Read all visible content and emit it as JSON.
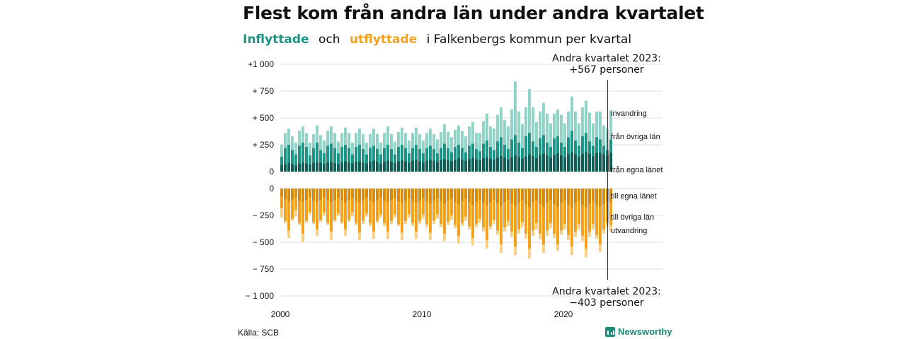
{
  "title": "Flest kom från andra län under andra kvartalet",
  "subtitle": {
    "inflyttade": "Inflyttade",
    "och": "och",
    "utflyttade": "utflyttade",
    "rest": "i Falkenbergs  kommun  per  kvartal"
  },
  "source": "Källa: SCB",
  "brand": "Newsworthy",
  "colors": {
    "in_total": "#8fd4c7",
    "in_other": "#1a9485",
    "in_own": "#0f5e55",
    "out_own": "#d98a0c",
    "out_other": "#f5a01a",
    "out_total": "#f9cf85",
    "gridline": "#dddddd"
  },
  "chart_data": {
    "type": "bar",
    "x_ticks": [
      "2000",
      "2010",
      "2020"
    ],
    "upper": {
      "y_ticks": [
        "+1 000",
        "+  750",
        "+  500",
        "+  250",
        "0"
      ],
      "ylim": [
        0,
        1000
      ],
      "annotation": [
        "Andra kvartalet 2023:",
        "+567 personer"
      ],
      "series_labels": [
        "invandring",
        "från övriga län",
        "från egna länet"
      ]
    },
    "lower": {
      "y_ticks": [
        "0",
        "−  250",
        "−  500",
        "−  750",
        "− 1 000"
      ],
      "ylim": [
        -1000,
        0
      ],
      "annotation": [
        "Andra kvartalet 2023:",
        "−403 personer"
      ],
      "series_labels": [
        "till egna länet",
        "till övriga län",
        "utvandring"
      ]
    },
    "x_start": 2000,
    "quarters_per_year": 4,
    "inflow_own": [
      60,
      70,
      80,
      70,
      60,
      75,
      85,
      75,
      65,
      80,
      90,
      80,
      70,
      85,
      90,
      80,
      70,
      85,
      95,
      85,
      75,
      90,
      95,
      85,
      75,
      90,
      100,
      90,
      75,
      90,
      100,
      90,
      80,
      95,
      105,
      95,
      80,
      100,
      110,
      95,
      85,
      100,
      110,
      100,
      90,
      105,
      115,
      105,
      95,
      110,
      125,
      110,
      100,
      115,
      130,
      115,
      105,
      125,
      135,
      120,
      110,
      130,
      145,
      130,
      115,
      135,
      150,
      135,
      120,
      140,
      160,
      145,
      125,
      150,
      165,
      150,
      130,
      155,
      170,
      150,
      135,
      160,
      180,
      160,
      140,
      165,
      185,
      165,
      145,
      170,
      175,
      160,
      150,
      175
    ],
    "inflow_other": [
      140,
      220,
      250,
      200,
      160,
      240,
      270,
      230,
      150,
      220,
      270,
      200,
      170,
      240,
      260,
      220,
      170,
      230,
      250,
      220,
      160,
      230,
      250,
      210,
      160,
      220,
      240,
      210,
      160,
      220,
      250,
      210,
      160,
      230,
      250,
      220,
      170,
      220,
      250,
      210,
      170,
      220,
      240,
      210,
      170,
      220,
      260,
      220,
      180,
      230,
      250,
      220,
      180,
      240,
      260,
      210,
      190,
      260,
      290,
      230,
      200,
      280,
      320,
      250,
      210,
      300,
      340,
      270,
      220,
      330,
      360,
      280,
      230,
      310,
      340,
      270,
      230,
      310,
      330,
      270,
      230,
      320,
      380,
      290,
      240,
      330,
      360,
      280,
      240,
      320,
      300,
      240,
      200,
      300
    ],
    "inflow_total": [
      250,
      360,
      400,
      330,
      270,
      380,
      420,
      360,
      270,
      350,
      430,
      340,
      290,
      380,
      420,
      360,
      280,
      360,
      410,
      360,
      270,
      360,
      400,
      350,
      270,
      350,
      400,
      350,
      270,
      360,
      420,
      350,
      280,
      370,
      410,
      360,
      290,
      360,
      410,
      350,
      290,
      360,
      400,
      350,
      300,
      370,
      440,
      370,
      320,
      390,
      430,
      380,
      330,
      420,
      460,
      360,
      360,
      470,
      540,
      420,
      400,
      530,
      600,
      480,
      420,
      580,
      840,
      560,
      440,
      600,
      770,
      600,
      460,
      560,
      640,
      540,
      450,
      540,
      580,
      530,
      450,
      560,
      700,
      560,
      450,
      600,
      660,
      550,
      450,
      560,
      560,
      430,
      400,
      567
    ],
    "outflow_own": [
      -70,
      -100,
      -120,
      -100,
      -80,
      -110,
      -125,
      -105,
      -80,
      -110,
      -125,
      -105,
      -80,
      -110,
      -125,
      -105,
      -85,
      -115,
      -130,
      -110,
      -85,
      -115,
      -130,
      -110,
      -85,
      -115,
      -130,
      -110,
      -85,
      -115,
      -130,
      -110,
      -90,
      -120,
      -135,
      -115,
      -90,
      -120,
      -135,
      -115,
      -90,
      -120,
      -135,
      -115,
      -90,
      -120,
      -140,
      -115,
      -95,
      -125,
      -145,
      -120,
      -95,
      -125,
      -150,
      -120,
      -100,
      -130,
      -155,
      -125,
      -100,
      -135,
      -160,
      -125,
      -105,
      -140,
      -165,
      -130,
      -110,
      -145,
      -170,
      -130,
      -110,
      -145,
      -170,
      -135,
      -110,
      -145,
      -170,
      -135,
      -115,
      -150,
      -175,
      -135,
      -115,
      -150,
      -175,
      -140,
      -115,
      -150,
      -170,
      -140,
      -120,
      -130
    ],
    "outflow_other": [
      -180,
      -300,
      -390,
      -280,
      -200,
      -320,
      -420,
      -300,
      -220,
      -310,
      -380,
      -290,
      -220,
      -320,
      -400,
      -290,
      -230,
      -310,
      -380,
      -290,
      -220,
      -320,
      -410,
      -300,
      -230,
      -320,
      -400,
      -300,
      -240,
      -320,
      -400,
      -300,
      -240,
      -330,
      -410,
      -300,
      -240,
      -320,
      -400,
      -300,
      -240,
      -330,
      -410,
      -300,
      -240,
      -330,
      -420,
      -310,
      -250,
      -340,
      -440,
      -320,
      -260,
      -350,
      -460,
      -330,
      -280,
      -360,
      -480,
      -350,
      -290,
      -390,
      -520,
      -360,
      -300,
      -400,
      -540,
      -380,
      -310,
      -420,
      -560,
      -390,
      -320,
      -420,
      -520,
      -390,
      -320,
      -420,
      -520,
      -390,
      -330,
      -430,
      -540,
      -400,
      -330,
      -440,
      -560,
      -400,
      -330,
      -430,
      -520,
      -380,
      -320,
      -340
    ],
    "outflow_total": [
      -270,
      -320,
      -460,
      -300,
      -260,
      -340,
      -500,
      -320,
      -240,
      -330,
      -440,
      -310,
      -250,
      -340,
      -480,
      -310,
      -250,
      -330,
      -440,
      -310,
      -260,
      -340,
      -480,
      -330,
      -260,
      -350,
      -470,
      -320,
      -270,
      -350,
      -470,
      -330,
      -270,
      -350,
      -480,
      -330,
      -270,
      -350,
      -470,
      -330,
      -280,
      -360,
      -480,
      -330,
      -280,
      -360,
      -490,
      -340,
      -290,
      -370,
      -510,
      -350,
      -300,
      -380,
      -530,
      -360,
      -320,
      -400,
      -560,
      -380,
      -330,
      -430,
      -600,
      -400,
      -350,
      -450,
      -620,
      -420,
      -360,
      -470,
      -650,
      -440,
      -380,
      -470,
      -600,
      -440,
      -370,
      -460,
      -580,
      -430,
      -380,
      -480,
      -620,
      -450,
      -380,
      -490,
      -640,
      -450,
      -380,
      -470,
      -590,
      -420,
      -360,
      -403
    ]
  }
}
